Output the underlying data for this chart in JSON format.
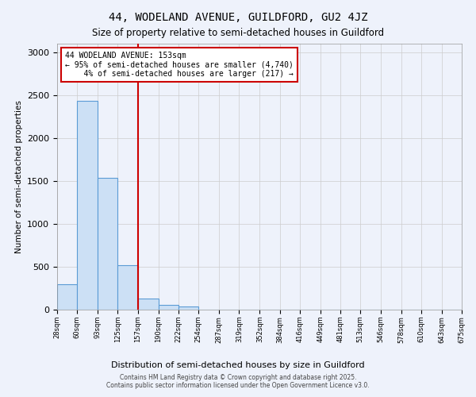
{
  "title": "44, WODELAND AVENUE, GUILDFORD, GU2 4JZ",
  "subtitle": "Size of property relative to semi-detached houses in Guildford",
  "xlabel": "Distribution of semi-detached houses by size in Guildford",
  "ylabel": "Number of semi-detached properties",
  "bar_values": [
    300,
    2430,
    1540,
    520,
    130,
    60,
    35,
    0,
    0,
    0,
    0,
    0,
    0,
    0,
    0,
    0,
    0,
    0,
    0,
    0
  ],
  "bin_edges": [
    28,
    60,
    93,
    125,
    157,
    190,
    222,
    254,
    287,
    319,
    352,
    384,
    416,
    449,
    481,
    513,
    546,
    578,
    610,
    643,
    675
  ],
  "red_line_x": 157,
  "ylim": [
    0,
    3100
  ],
  "annotation_line1": "44 WODELAND AVENUE: 153sqm",
  "annotation_line2": "← 95% of semi-detached houses are smaller (4,740)",
  "annotation_line3": "    4% of semi-detached houses are larger (217) →",
  "bar_facecolor": "#cce0f5",
  "bar_edgecolor": "#5b9bd5",
  "red_line_color": "#cc0000",
  "grid_color": "#cccccc",
  "bg_color": "#eef2fb",
  "plot_bg_color": "#eef2fb",
  "footer_line1": "Contains HM Land Registry data © Crown copyright and database right 2025.",
  "footer_line2": "Contains public sector information licensed under the Open Government Licence v3.0.",
  "title_fontsize": 10,
  "subtitle_fontsize": 8.5,
  "xlabel_fontsize": 8,
  "ylabel_fontsize": 7.5,
  "yticks": [
    0,
    500,
    1000,
    1500,
    2000,
    2500,
    3000
  ]
}
